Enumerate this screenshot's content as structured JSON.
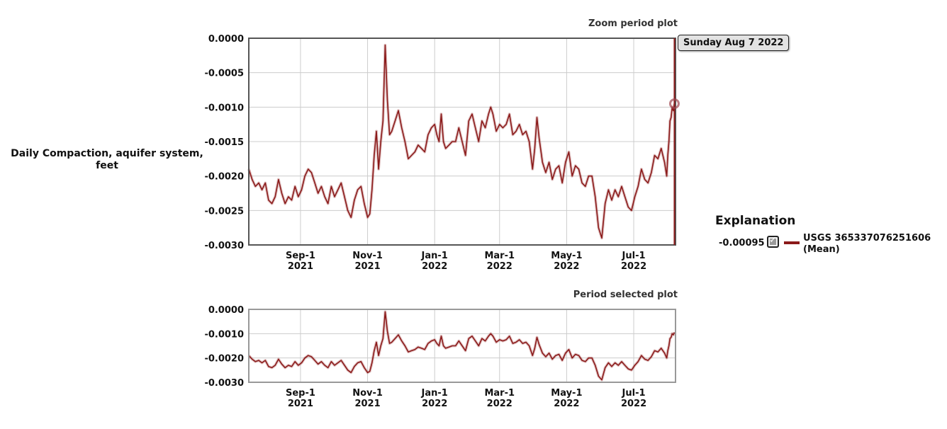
{
  "y_axis_label": "Daily Compaction, aquifer system, feet",
  "tooltip": {
    "date": "Sunday Aug 7 2022"
  },
  "legend": {
    "title": "Explanation",
    "value": "-0.00095",
    "series_name": "USGS 365337076251606",
    "series_stat": "(Mean)",
    "checked": true
  },
  "colors": {
    "series": "#8b1a1a",
    "grid": "#cccccc",
    "frame": "#555555"
  },
  "chart_data": [
    {
      "type": "line",
      "title": "Zoom period plot",
      "ylabel": "Daily Compaction, aquifer system, feet",
      "xlim": [
        "2021-07-16",
        "2022-08-08"
      ],
      "ylim": [
        -0.003,
        0.0
      ],
      "y_ticks": [
        "0.0000",
        "-0.0005",
        "-0.0010",
        "-0.0015",
        "-0.0020",
        "-0.0025",
        "-0.0030"
      ],
      "x_ticks": [
        {
          "date": "2021-09-01",
          "label": "Sep-1",
          "year": "2021"
        },
        {
          "date": "2021-11-01",
          "label": "Nov-1",
          "year": "2021"
        },
        {
          "date": "2022-01-01",
          "label": "Jan-1",
          "year": "2022"
        },
        {
          "date": "2022-03-01",
          "label": "Mar-1",
          "year": "2022"
        },
        {
          "date": "2022-05-01",
          "label": "May-1",
          "year": "2022"
        },
        {
          "date": "2022-07-01",
          "label": "Jul-1",
          "year": "2022"
        }
      ],
      "grid": true,
      "cursor": {
        "date": "2022-08-07",
        "value": -0.00095
      },
      "series": [
        {
          "name": "USGS 365337076251606 (Mean)",
          "points": [
            [
              "2021-07-16",
              -0.0019
            ],
            [
              "2021-07-19",
              -0.00205
            ],
            [
              "2021-07-22",
              -0.00215
            ],
            [
              "2021-07-25",
              -0.0021
            ],
            [
              "2021-07-28",
              -0.0022
            ],
            [
              "2021-07-31",
              -0.0021
            ],
            [
              "2021-08-03",
              -0.00235
            ],
            [
              "2021-08-06",
              -0.0024
            ],
            [
              "2021-08-09",
              -0.0023
            ],
            [
              "2021-08-12",
              -0.00205
            ],
            [
              "2021-08-15",
              -0.00225
            ],
            [
              "2021-08-18",
              -0.0024
            ],
            [
              "2021-08-21",
              -0.0023
            ],
            [
              "2021-08-24",
              -0.00235
            ],
            [
              "2021-08-27",
              -0.00215
            ],
            [
              "2021-08-30",
              -0.0023
            ],
            [
              "2021-09-02",
              -0.0022
            ],
            [
              "2021-09-05",
              -0.002
            ],
            [
              "2021-09-08",
              -0.0019
            ],
            [
              "2021-09-11",
              -0.00195
            ],
            [
              "2021-09-14",
              -0.0021
            ],
            [
              "2021-09-17",
              -0.00225
            ],
            [
              "2021-09-20",
              -0.00215
            ],
            [
              "2021-09-23",
              -0.0023
            ],
            [
              "2021-09-26",
              -0.0024
            ],
            [
              "2021-09-29",
              -0.00215
            ],
            [
              "2021-10-02",
              -0.0023
            ],
            [
              "2021-10-05",
              -0.0022
            ],
            [
              "2021-10-08",
              -0.0021
            ],
            [
              "2021-10-11",
              -0.0023
            ],
            [
              "2021-10-14",
              -0.0025
            ],
            [
              "2021-10-17",
              -0.0026
            ],
            [
              "2021-10-20",
              -0.00235
            ],
            [
              "2021-10-23",
              -0.0022
            ],
            [
              "2021-10-26",
              -0.00215
            ],
            [
              "2021-10-29",
              -0.0024
            ],
            [
              "2021-11-01",
              -0.0026
            ],
            [
              "2021-11-03",
              -0.00255
            ],
            [
              "2021-11-05",
              -0.0022
            ],
            [
              "2021-11-07",
              -0.0017
            ],
            [
              "2021-11-09",
              -0.00135
            ],
            [
              "2021-11-11",
              -0.0019
            ],
            [
              "2021-11-13",
              -0.0015
            ],
            [
              "2021-11-15",
              -0.0012
            ],
            [
              "2021-11-17",
              -0.0001
            ],
            [
              "2021-11-19",
              -0.0009
            ],
            [
              "2021-11-21",
              -0.0014
            ],
            [
              "2021-11-23",
              -0.00135
            ],
            [
              "2021-11-26",
              -0.0012
            ],
            [
              "2021-11-29",
              -0.00105
            ],
            [
              "2021-12-02",
              -0.0013
            ],
            [
              "2021-12-05",
              -0.0015
            ],
            [
              "2021-12-08",
              -0.00175
            ],
            [
              "2021-12-11",
              -0.0017
            ],
            [
              "2021-12-14",
              -0.00165
            ],
            [
              "2021-12-17",
              -0.00155
            ],
            [
              "2021-12-20",
              -0.0016
            ],
            [
              "2021-12-23",
              -0.00165
            ],
            [
              "2021-12-26",
              -0.0014
            ],
            [
              "2021-12-29",
              -0.0013
            ],
            [
              "2022-01-01",
              -0.00125
            ],
            [
              "2022-01-03",
              -0.0014
            ],
            [
              "2022-01-05",
              -0.0015
            ],
            [
              "2022-01-07",
              -0.0011
            ],
            [
              "2022-01-09",
              -0.0015
            ],
            [
              "2022-01-11",
              -0.0016
            ],
            [
              "2022-01-14",
              -0.00155
            ],
            [
              "2022-01-17",
              -0.0015
            ],
            [
              "2022-01-20",
              -0.0015
            ],
            [
              "2022-01-23",
              -0.0013
            ],
            [
              "2022-01-26",
              -0.0015
            ],
            [
              "2022-01-29",
              -0.0017
            ],
            [
              "2022-02-01",
              -0.0012
            ],
            [
              "2022-02-04",
              -0.0011
            ],
            [
              "2022-02-07",
              -0.0013
            ],
            [
              "2022-02-10",
              -0.0015
            ],
            [
              "2022-02-13",
              -0.0012
            ],
            [
              "2022-02-16",
              -0.0013
            ],
            [
              "2022-02-19",
              -0.0011
            ],
            [
              "2022-02-21",
              -0.001
            ],
            [
              "2022-02-23",
              -0.0011
            ],
            [
              "2022-02-26",
              -0.00135
            ],
            [
              "2022-03-01",
              -0.00125
            ],
            [
              "2022-03-04",
              -0.0013
            ],
            [
              "2022-03-07",
              -0.00125
            ],
            [
              "2022-03-10",
              -0.0011
            ],
            [
              "2022-03-13",
              -0.0014
            ],
            [
              "2022-03-16",
              -0.00135
            ],
            [
              "2022-03-19",
              -0.00125
            ],
            [
              "2022-03-22",
              -0.0014
            ],
            [
              "2022-03-25",
              -0.00135
            ],
            [
              "2022-03-28",
              -0.0015
            ],
            [
              "2022-03-31",
              -0.0019
            ],
            [
              "2022-04-02",
              -0.0016
            ],
            [
              "2022-04-04",
              -0.00115
            ],
            [
              "2022-04-06",
              -0.00145
            ],
            [
              "2022-04-09",
              -0.0018
            ],
            [
              "2022-04-12",
              -0.00195
            ],
            [
              "2022-04-15",
              -0.0018
            ],
            [
              "2022-04-18",
              -0.00205
            ],
            [
              "2022-04-21",
              -0.0019
            ],
            [
              "2022-04-24",
              -0.00185
            ],
            [
              "2022-04-27",
              -0.0021
            ],
            [
              "2022-04-30",
              -0.0018
            ],
            [
              "2022-05-03",
              -0.00165
            ],
            [
              "2022-05-06",
              -0.002
            ],
            [
              "2022-05-09",
              -0.00185
            ],
            [
              "2022-05-12",
              -0.0019
            ],
            [
              "2022-05-15",
              -0.0021
            ],
            [
              "2022-05-18",
              -0.00215
            ],
            [
              "2022-05-21",
              -0.002
            ],
            [
              "2022-05-24",
              -0.002
            ],
            [
              "2022-05-27",
              -0.0023
            ],
            [
              "2022-05-30",
              -0.00275
            ],
            [
              "2022-06-02",
              -0.0029
            ],
            [
              "2022-06-05",
              -0.0024
            ],
            [
              "2022-06-08",
              -0.0022
            ],
            [
              "2022-06-11",
              -0.00235
            ],
            [
              "2022-06-14",
              -0.0022
            ],
            [
              "2022-06-17",
              -0.0023
            ],
            [
              "2022-06-20",
              -0.00215
            ],
            [
              "2022-06-23",
              -0.0023
            ],
            [
              "2022-06-26",
              -0.00245
            ],
            [
              "2022-06-29",
              -0.0025
            ],
            [
              "2022-07-02",
              -0.0023
            ],
            [
              "2022-07-05",
              -0.00215
            ],
            [
              "2022-07-08",
              -0.0019
            ],
            [
              "2022-07-11",
              -0.00205
            ],
            [
              "2022-07-14",
              -0.0021
            ],
            [
              "2022-07-17",
              -0.00195
            ],
            [
              "2022-07-20",
              -0.0017
            ],
            [
              "2022-07-23",
              -0.00175
            ],
            [
              "2022-07-26",
              -0.0016
            ],
            [
              "2022-07-29",
              -0.0018
            ],
            [
              "2022-07-31",
              -0.002
            ],
            [
              "2022-08-01",
              -0.0017
            ],
            [
              "2022-08-02",
              -0.0015
            ],
            [
              "2022-08-03",
              -0.0012
            ],
            [
              "2022-08-04",
              -0.00115
            ],
            [
              "2022-08-05",
              -0.001
            ],
            [
              "2022-08-06",
              -0.00105
            ],
            [
              "2022-08-07",
              -0.00095
            ]
          ]
        }
      ]
    },
    {
      "type": "line",
      "title": "Period selected plot",
      "xlim": [
        "2021-07-16",
        "2022-08-08"
      ],
      "ylim": [
        -0.003,
        0.0
      ],
      "y_ticks": [
        "0.0000",
        "-0.0010",
        "-0.0020",
        "-0.0030"
      ],
      "x_ticks": [
        {
          "date": "2021-09-01",
          "label": "Sep-1",
          "year": "2021"
        },
        {
          "date": "2021-11-01",
          "label": "Nov-1",
          "year": "2021"
        },
        {
          "date": "2022-01-01",
          "label": "Jan-1",
          "year": "2022"
        },
        {
          "date": "2022-03-01",
          "label": "Mar-1",
          "year": "2022"
        },
        {
          "date": "2022-05-01",
          "label": "May-1",
          "year": "2022"
        },
        {
          "date": "2022-07-01",
          "label": "Jul-1",
          "year": "2022"
        }
      ],
      "grid": true,
      "series_ref": "same series as Zoom period plot"
    }
  ]
}
